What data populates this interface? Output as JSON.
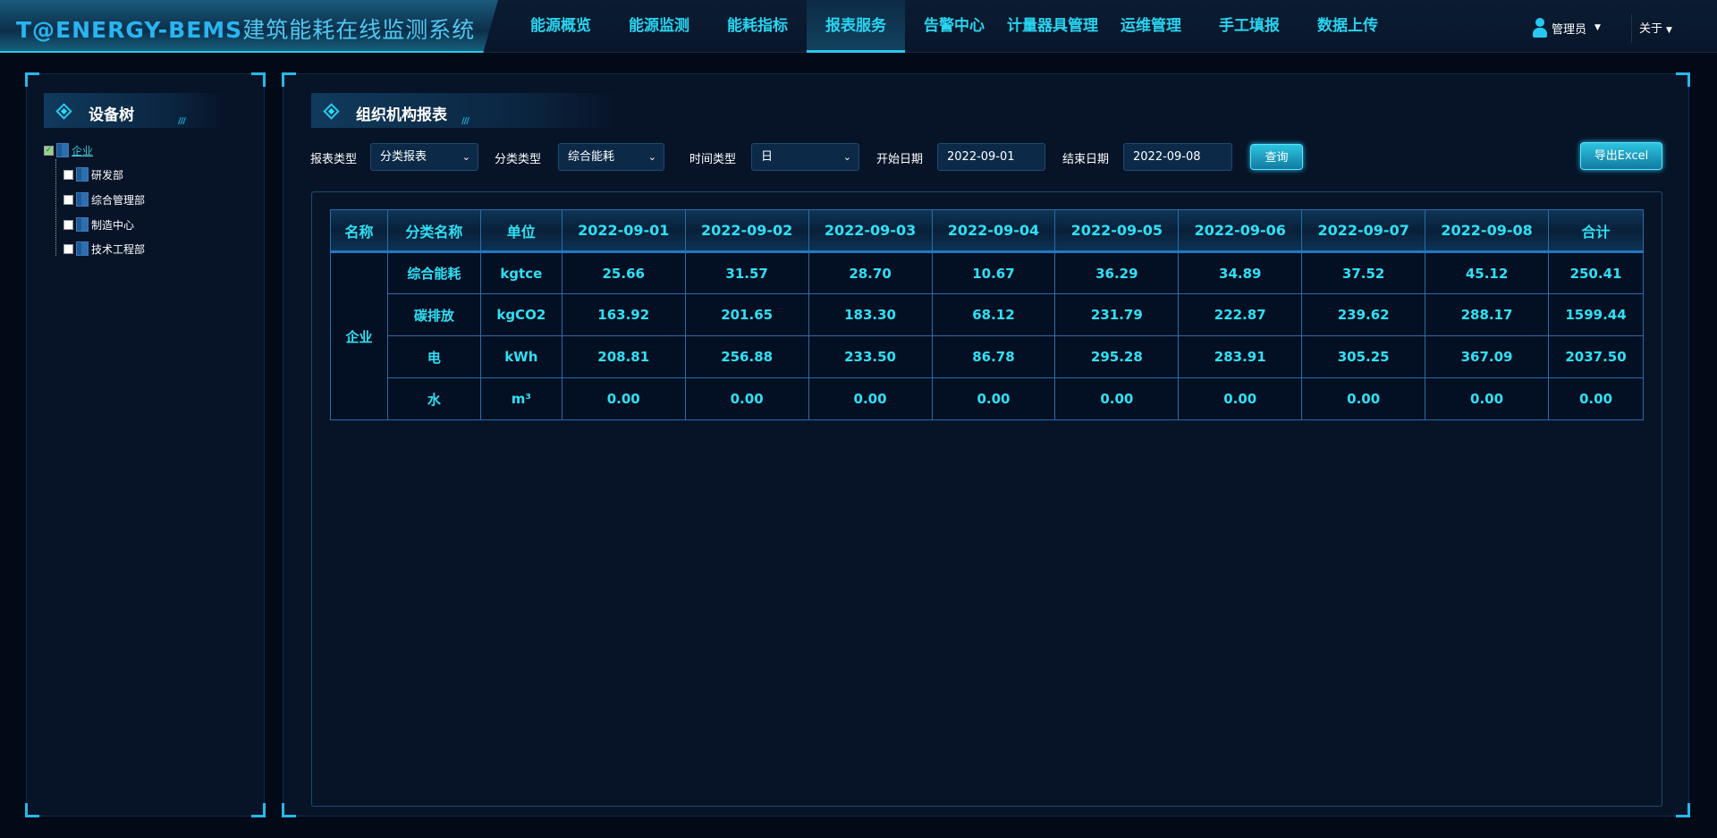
{
  "header": {
    "logo_brand": "T@ENERGY-BEMS",
    "logo_title": "建筑能耗在线监测系统",
    "nav": [
      "能源概览",
      "能源监测",
      "能耗指标",
      "报表服务",
      "告警中心",
      "计量器具管理",
      "运维管理",
      "手工填报",
      "数据上传"
    ],
    "active_nav": "报表服务",
    "user": "管理员",
    "about": "关于"
  },
  "left": {
    "title": "设备树",
    "tree": {
      "root": "企业",
      "root_checked": true,
      "children": [
        "研发部",
        "综合管理部",
        "制造中心",
        "技术工程部"
      ]
    }
  },
  "main": {
    "title": "组织机构报表",
    "filters": {
      "report_type_label": "报表类型",
      "report_type": "分类报表",
      "category_type_label": "分类类型",
      "category_type": "综合能耗",
      "time_type_label": "时间类型",
      "time_type": "日",
      "start_label": "开始日期",
      "start": "2022-09-01",
      "end_label": "结束日期",
      "end": "2022-09-08",
      "query": "查询",
      "export": "导出Excel"
    },
    "table": {
      "headers": [
        "名称",
        "分类名称",
        "单位",
        "2022-09-01",
        "2022-09-02",
        "2022-09-03",
        "2022-09-04",
        "2022-09-05",
        "2022-09-06",
        "2022-09-07",
        "2022-09-08",
        "合计"
      ],
      "group": "企业",
      "rows": [
        {
          "name": "综合能耗",
          "unit": "kgtce",
          "values": [
            "25.66",
            "31.57",
            "28.70",
            "10.67",
            "36.29",
            "34.89",
            "37.52",
            "45.12",
            "250.41"
          ]
        },
        {
          "name": "碳排放",
          "unit": "kgCO2",
          "values": [
            "163.92",
            "201.65",
            "183.30",
            "68.12",
            "231.79",
            "222.87",
            "239.62",
            "288.17",
            "1599.44"
          ]
        },
        {
          "name": "电",
          "unit": "kWh",
          "values": [
            "208.81",
            "256.88",
            "233.50",
            "86.78",
            "295.28",
            "283.91",
            "305.25",
            "367.09",
            "2037.50"
          ]
        },
        {
          "name": "水",
          "unit": "m³",
          "values": [
            "0.00",
            "0.00",
            "0.00",
            "0.00",
            "0.00",
            "0.00",
            "0.00",
            "0.00",
            "0.00"
          ]
        }
      ]
    }
  },
  "colors": {
    "accent": "#27d4f0",
    "background": "#020a18"
  }
}
